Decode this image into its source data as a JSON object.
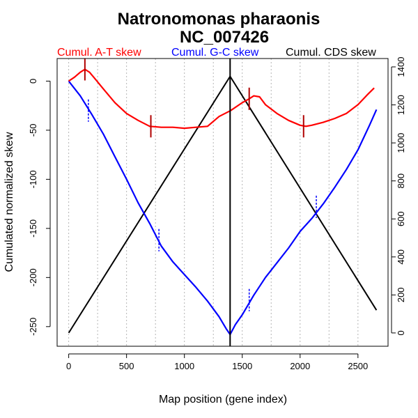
{
  "chart_data": {
    "type": "line",
    "title_line1": "Natronomonas pharaonis",
    "title_line2": "NC_007426",
    "xlabel": "Map position (gene index)",
    "ylabel": "Cumulated normalized skew",
    "xlim": [
      -100,
      2760
    ],
    "ylim": [
      -270,
      23
    ],
    "y2lim": [
      -70,
      1444
    ],
    "x_ticks": [
      0,
      500,
      1000,
      1500,
      2000,
      2500
    ],
    "y_ticks": [
      0,
      -50,
      -100,
      -150,
      -200,
      -250
    ],
    "y2_ticks": [
      0,
      200,
      400,
      600,
      800,
      1000,
      1200,
      1400
    ],
    "x_grid": [
      0,
      250,
      500,
      750,
      1000,
      1250,
      1500,
      1750,
      2000,
      2250,
      2500
    ],
    "legend": [
      {
        "label": "Cumul. A-T skew",
        "color": "#ff0000"
      },
      {
        "label": "Cumul. G-C skew",
        "color": "#0000ff"
      },
      {
        "label": "Cumul. CDS skew",
        "color": "#000000"
      }
    ],
    "vertical_line_x": 1395,
    "series": [
      {
        "name": "Cumul. A-T skew",
        "color": "#ff0000",
        "axis": "left",
        "x": [
          0,
          50,
          100,
          140,
          180,
          230,
          300,
          400,
          500,
          600,
          700,
          800,
          900,
          1000,
          1100,
          1200,
          1300,
          1400,
          1500,
          1560,
          1600,
          1650,
          1700,
          1800,
          1900,
          2000,
          2050,
          2100,
          2200,
          2300,
          2400,
          2500,
          2580,
          2640
        ],
        "y": [
          0,
          4,
          9,
          12,
          9,
          2,
          -8,
          -22,
          -33,
          -40,
          -46,
          -47,
          -47,
          -48,
          -47,
          -46,
          -36,
          -30,
          -22,
          -18,
          -15,
          -16,
          -24,
          -33,
          -40,
          -45,
          -46,
          -45,
          -42,
          -38,
          -33,
          -24,
          -14,
          -7
        ]
      },
      {
        "name": "Cumul. G-C skew",
        "color": "#0000ff",
        "axis": "left",
        "x": [
          0,
          100,
          200,
          300,
          400,
          500,
          600,
          700,
          800,
          900,
          1000,
          1100,
          1200,
          1300,
          1360,
          1395,
          1440,
          1500,
          1600,
          1700,
          1800,
          1900,
          2000,
          2100,
          2200,
          2300,
          2400,
          2500,
          2600,
          2660
        ],
        "y": [
          0,
          -15,
          -34,
          -54,
          -77,
          -100,
          -124,
          -145,
          -168,
          -184,
          -197,
          -210,
          -224,
          -240,
          -252,
          -258,
          -248,
          -238,
          -218,
          -200,
          -185,
          -170,
          -153,
          -140,
          -125,
          -108,
          -90,
          -70,
          -45,
          -29
        ]
      },
      {
        "name": "Cumul. CDS skew",
        "color": "#000000",
        "axis": "right",
        "x": [
          0,
          1395,
          2660
        ],
        "y": [
          0,
          1350,
          120
        ]
      }
    ],
    "markers": [
      {
        "series": "Cumul. A-T skew",
        "x": 140,
        "y": 12
      },
      {
        "series": "Cumul. A-T skew",
        "x": 710,
        "y": -46
      },
      {
        "series": "Cumul. A-T skew",
        "x": 1560,
        "y": -18
      },
      {
        "series": "Cumul. A-T skew",
        "x": 2030,
        "y": -46
      }
    ],
    "gc_dashes": [
      {
        "x": 170,
        "y": -30
      },
      {
        "x": 780,
        "y": -162
      },
      {
        "x": 1560,
        "y": -223
      },
      {
        "x": 2140,
        "y": -128
      }
    ]
  }
}
